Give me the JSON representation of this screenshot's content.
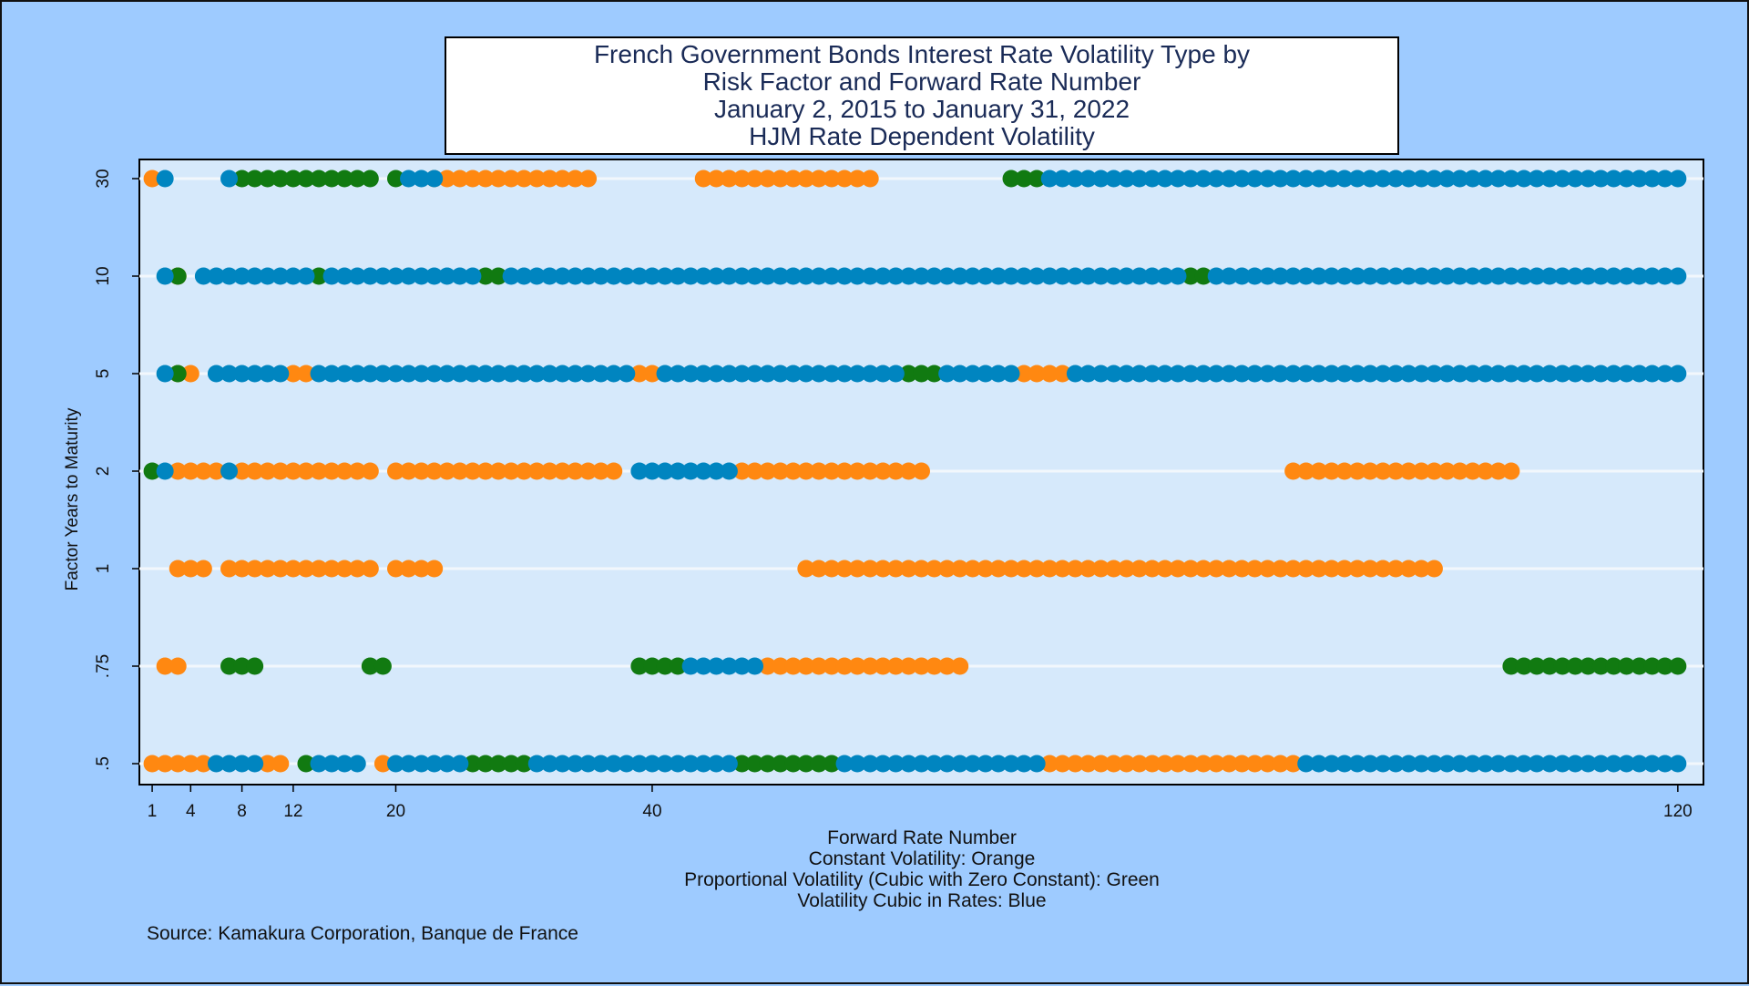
{
  "chart_data": {
    "type": "scatter",
    "title": [
      "French Government Bonds Interest Rate Volatility Type by",
      "Risk Factor and Forward Rate Number",
      "January 2, 2015 to January 31, 2022",
      "HJM Rate Dependent Volatility"
    ],
    "xlabel": "Forward Rate Number",
    "ylabel": "Factor Years to Maturity",
    "x_ticks": [
      1,
      4,
      8,
      12,
      20,
      40,
      120
    ],
    "y_categories": [
      ".5",
      ".75",
      "1",
      "2",
      "5",
      "10",
      "30"
    ],
    "xlim": [
      0,
      122
    ],
    "grid": "horizontal",
    "legend_lines": [
      "Constant Volatility: Orange",
      "Proportional Volatility (Cubic with Zero Constant): Green",
      "Volatility Cubic in Rates: Blue"
    ],
    "source": "Source: Kamakura Corporation, Banque de France",
    "colors": {
      "orange": "#ff8811",
      "green": "#117a11",
      "blue": "#0085c0"
    },
    "series": [
      {
        "name": "Constant Volatility: Orange",
        "color": "orange",
        "points": {
          ".5": [
            [
              1,
              5
            ],
            [
              10,
              11
            ],
            [
              19,
              19
            ],
            [
              71,
              90
            ]
          ],
          ".75": [
            [
              2,
              3
            ],
            [
              49,
              64
            ]
          ],
          "1": [
            [
              3,
              5
            ],
            [
              7,
              18
            ],
            [
              20,
              23
            ],
            [
              52,
              101
            ]
          ],
          "2": [
            [
              3,
              3
            ],
            [
              4,
              6
            ],
            [
              8,
              18
            ],
            [
              20,
              37
            ],
            [
              47,
              61
            ],
            [
              90,
              107
            ]
          ],
          "5": [
            [
              3,
              4
            ],
            [
              12,
              13
            ],
            [
              39,
              40
            ],
            [
              69,
              72
            ]
          ],
          "10": [
            [
              3,
              3
            ]
          ],
          "30": [
            [
              1,
              1
            ],
            [
              23,
              35
            ],
            [
              44,
              57
            ]
          ]
        }
      },
      {
        "name": "Proportional Volatility (Cubic with Zero Constant): Green",
        "color": "green",
        "points": {
          ".5": [
            [
              13,
              13
            ],
            [
              26,
              30
            ],
            [
              47,
              54
            ]
          ],
          ".75": [
            [
              7,
              9
            ],
            [
              18,
              19
            ],
            [
              39,
              42
            ],
            [
              107,
              120
            ]
          ],
          "2": [
            [
              1,
              1
            ]
          ],
          "5": [
            [
              3,
              3
            ],
            [
              60,
              62
            ]
          ],
          "10": [
            [
              3,
              3
            ],
            [
              14,
              14
            ],
            [
              27,
              28
            ],
            [
              82,
              83
            ]
          ],
          "30": [
            [
              8,
              18
            ],
            [
              20,
              20
            ],
            [
              68,
              70
            ]
          ]
        }
      },
      {
        "name": "Volatility Cubic in Rates: Blue",
        "color": "blue",
        "points": {
          ".5": [
            [
              6,
              9
            ],
            [
              14,
              17
            ],
            [
              20,
              25
            ],
            [
              31,
              46
            ],
            [
              55,
              70
            ],
            [
              91,
              120
            ]
          ],
          ".75": [
            [
              43,
              48
            ]
          ],
          "2": [
            [
              2,
              2
            ],
            [
              7,
              7
            ],
            [
              39,
              46
            ]
          ],
          "5": [
            [
              2,
              2
            ],
            [
              6,
              11
            ],
            [
              14,
              38
            ],
            [
              41,
              59
            ],
            [
              63,
              68
            ],
            [
              73,
              120
            ]
          ],
          "10": [
            [
              2,
              2
            ],
            [
              5,
              13
            ],
            [
              15,
              26
            ],
            [
              29,
              81
            ],
            [
              84,
              120
            ]
          ],
          "30": [
            [
              2,
              2
            ],
            [
              7,
              7
            ],
            [
              21,
              23
            ],
            [
              71,
              120
            ]
          ]
        }
      }
    ]
  }
}
